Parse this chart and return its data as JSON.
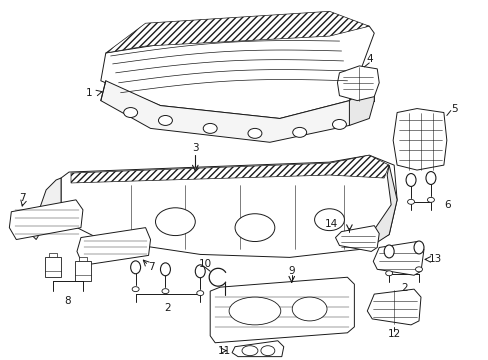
{
  "background_color": "#ffffff",
  "fig_width": 4.89,
  "fig_height": 3.6,
  "dpi": 100,
  "line_color": "#1a1a1a",
  "line_width": 0.7,
  "label_fontsize": 7.5
}
